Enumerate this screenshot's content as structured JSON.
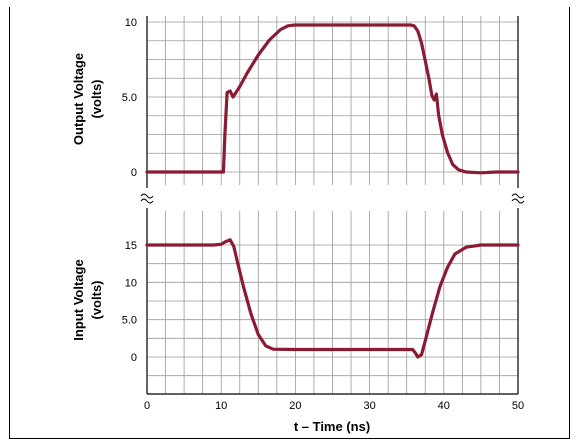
{
  "chart_data": [
    {
      "type": "line",
      "panel": "output",
      "ylabel_line1": "Output Voltage",
      "ylabel_line2": "(volts)",
      "ylim": [
        -0.5,
        10
      ],
      "xlim": [
        0,
        50
      ],
      "y_ticks": [
        {
          "value": 0,
          "label": "0"
        },
        {
          "value": 5,
          "label": "5.0"
        },
        {
          "value": 10,
          "label": "10"
        }
      ],
      "grid": true,
      "series_color": "#8b1a33",
      "x": [
        0,
        10,
        10.3,
        10.5,
        10.8,
        11.2,
        11.6,
        12.5,
        13.5,
        15,
        16.5,
        18,
        19,
        20,
        21,
        25,
        30,
        34,
        35.5,
        36,
        36.5,
        37,
        37.5,
        38,
        38.4,
        38.7,
        39,
        39.3,
        39.8,
        40.5,
        41.2,
        42,
        43,
        45,
        47,
        50
      ],
      "y": [
        0,
        0,
        0,
        2.5,
        5.3,
        5.4,
        5.0,
        5.7,
        6.6,
        7.8,
        8.8,
        9.5,
        9.75,
        9.8,
        9.8,
        9.8,
        9.8,
        9.8,
        9.8,
        9.75,
        9.4,
        8.6,
        7.4,
        6.2,
        5.1,
        4.8,
        5.2,
        3.8,
        2.5,
        1.3,
        0.5,
        0.15,
        0,
        -0.05,
        0,
        0
      ]
    },
    {
      "type": "line",
      "panel": "input",
      "ylabel_line1": "Input Voltage",
      "ylabel_line2": "(volts)",
      "ylim": [
        -3,
        15.8
      ],
      "xlim": [
        0,
        50
      ],
      "y_ticks": [
        {
          "value": 0,
          "label": "0"
        },
        {
          "value": 5,
          "label": "5.0"
        },
        {
          "value": 10,
          "label": "10"
        },
        {
          "value": 15,
          "label": "15"
        }
      ],
      "x_ticks": [
        {
          "value": 0,
          "label": "0"
        },
        {
          "value": 10,
          "label": "10"
        },
        {
          "value": 20,
          "label": "20"
        },
        {
          "value": 30,
          "label": "30"
        },
        {
          "value": 40,
          "label": "40"
        },
        {
          "value": 50,
          "label": "50"
        }
      ],
      "xlabel": "t – Time (ns)",
      "grid": true,
      "series_color": "#8b1a33",
      "x": [
        0,
        5,
        9,
        10,
        10.5,
        11.2,
        11.7,
        12.2,
        13,
        14,
        15,
        16,
        17,
        20,
        30,
        35,
        35.8,
        36.2,
        36.5,
        37,
        37.5,
        38.5,
        39.5,
        40.5,
        41.5,
        43,
        45,
        50
      ],
      "y": [
        15,
        15,
        15,
        15.1,
        15.4,
        15.7,
        14.8,
        12.7,
        9.4,
        5.8,
        3,
        1.5,
        1.05,
        1,
        1,
        1,
        1,
        0.5,
        0,
        0.3,
        2.2,
        6,
        9.5,
        12,
        13.8,
        14.7,
        15,
        15
      ]
    }
  ]
}
